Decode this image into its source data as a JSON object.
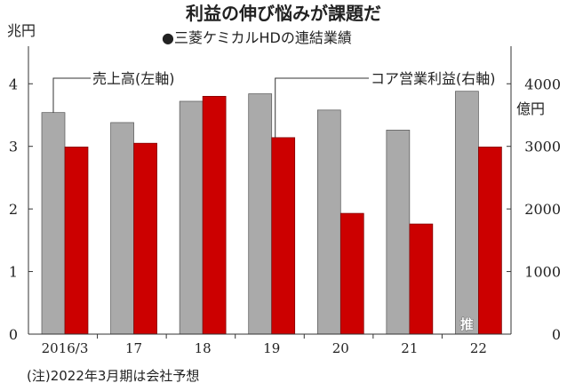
{
  "chart_data": {
    "type": "bar",
    "title": "利益の伸び悩みが課題だ",
    "subtitle": "●三菱ケミカルHDの連結業績",
    "categories": [
      "2016/3",
      "17",
      "18",
      "19",
      "20",
      "21",
      "22"
    ],
    "left_axis": {
      "unit": "兆円",
      "ticks": [
        "0",
        "1",
        "2",
        "3",
        "4"
      ],
      "ylim": [
        0,
        4.6
      ]
    },
    "right_axis": {
      "unit": "億円",
      "ticks": [
        "0",
        "1000",
        "2000",
        "3000",
        "4000"
      ],
      "ylim": [
        0,
        4600
      ]
    },
    "series": [
      {
        "name": "売上高(左軸)",
        "axis": "left",
        "color": "#aaaaaa",
        "values": [
          3.54,
          3.38,
          3.72,
          3.84,
          3.58,
          3.26,
          3.88
        ]
      },
      {
        "name": "コア営業利益(右軸)",
        "axis": "right",
        "color": "#cc0000",
        "values": [
          2990,
          3050,
          3800,
          3140,
          1930,
          1760,
          2990
        ]
      }
    ],
    "estimate_marker": {
      "category": "22",
      "text": "推"
    },
    "note": "(注)2022年3月期は会社予想",
    "grid": false
  }
}
